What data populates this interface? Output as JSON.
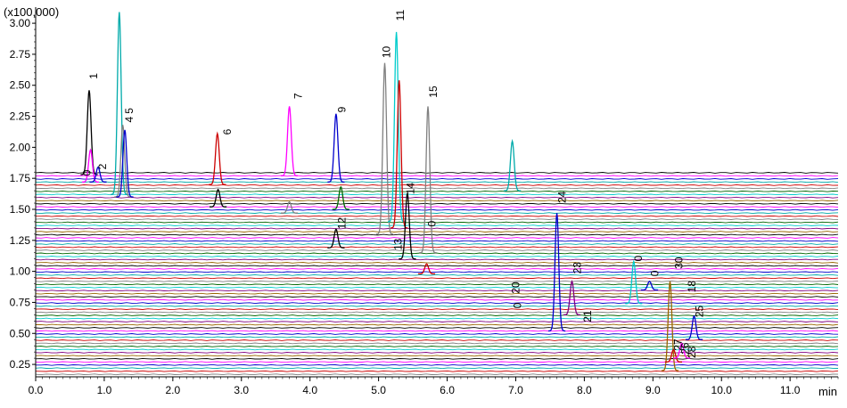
{
  "chart_data": {
    "type": "line",
    "title": "",
    "y_multiplier_label": "(x100,000)",
    "xlabel": "min",
    "ylabel": "",
    "xlim": [
      0.0,
      11.7
    ],
    "ylim": [
      0.15,
      3.13
    ],
    "x_ticks": [
      "0.0",
      "1.0",
      "2.0",
      "3.0",
      "4.0",
      "5.0",
      "6.0",
      "7.0",
      "8.0",
      "9.0",
      "10.0",
      "11.0"
    ],
    "x_tick_values": [
      0,
      1,
      2,
      3,
      4,
      5,
      6,
      7,
      8,
      9,
      10,
      11
    ],
    "y_ticks": [
      "0.25",
      "0.50",
      "0.75",
      "1.00",
      "1.25",
      "1.50",
      "1.75",
      "2.00",
      "2.25",
      "2.50",
      "2.75",
      "3.00"
    ],
    "y_tick_values": [
      0.25,
      0.5,
      0.75,
      1.0,
      1.25,
      1.5,
      1.75,
      2.0,
      2.25,
      2.5,
      2.75,
      3.0
    ],
    "palette": [
      "#000000",
      "#ff00ff",
      "#0000cc",
      "#00aaaa",
      "#cc0000",
      "#808080",
      "#006600",
      "#00cccc",
      "#800080",
      "#996600"
    ],
    "baselines": [
      1.795,
      1.77,
      1.745,
      1.72,
      1.695,
      1.67,
      1.645,
      1.62,
      1.595,
      1.57,
      1.545,
      1.52,
      1.495,
      1.47,
      1.445,
      1.42,
      1.395,
      1.37,
      1.345,
      1.32,
      1.295,
      1.27,
      1.245,
      1.22,
      1.195,
      1.17,
      1.145,
      1.12,
      1.095,
      1.07,
      1.045,
      1.02,
      0.995,
      0.97,
      0.945,
      0.92,
      0.895,
      0.87,
      0.845,
      0.82,
      0.795,
      0.77,
      0.745,
      0.72,
      0.695,
      0.67,
      0.645,
      0.62,
      0.595,
      0.57,
      0.545,
      0.52,
      0.495,
      0.47,
      0.445,
      0.42,
      0.395,
      0.37,
      0.345,
      0.32,
      0.295,
      0.27,
      0.245,
      0.22,
      0.195,
      0.17
    ],
    "peaks": [
      {
        "x": 0.78,
        "apex": 2.46,
        "base": 1.78,
        "color": "#000000"
      },
      {
        "x": 0.8,
        "apex": 1.98,
        "base": 1.72,
        "color": "#ff00ff"
      },
      {
        "x": 0.91,
        "apex": 1.84,
        "base": 1.72,
        "color": "#0000cc"
      },
      {
        "x": 1.22,
        "apex": 3.09,
        "base": 1.62,
        "color": "#00aaaa"
      },
      {
        "x": 1.27,
        "apex": 2.18,
        "base": 1.6,
        "color": "#808080"
      },
      {
        "x": 1.3,
        "apex": 2.14,
        "base": 1.6,
        "color": "#0000cc"
      },
      {
        "x": 2.65,
        "apex": 2.11,
        "base": 1.7,
        "color": "#cc0000"
      },
      {
        "x": 2.66,
        "apex": 1.66,
        "base": 1.52,
        "color": "#000000"
      },
      {
        "x": 3.7,
        "apex": 2.33,
        "base": 1.77,
        "color": "#ff00ff"
      },
      {
        "x": 3.7,
        "apex": 1.56,
        "base": 1.47,
        "color": "#808080"
      },
      {
        "x": 4.38,
        "apex": 2.27,
        "base": 1.72,
        "color": "#0000cc"
      },
      {
        "x": 4.38,
        "apex": 1.34,
        "base": 1.19,
        "color": "#000000"
      },
      {
        "x": 4.45,
        "apex": 1.68,
        "base": 1.5,
        "color": "#006600"
      },
      {
        "x": 5.09,
        "apex": 2.68,
        "base": 1.3,
        "color": "#808080"
      },
      {
        "x": 5.26,
        "apex": 2.93,
        "base": 1.4,
        "color": "#00cccc"
      },
      {
        "x": 5.3,
        "apex": 2.54,
        "base": 1.35,
        "color": "#cc0000"
      },
      {
        "x": 5.42,
        "apex": 1.63,
        "base": 1.1,
        "color": "#000000"
      },
      {
        "x": 5.72,
        "apex": 2.33,
        "base": 1.15,
        "color": "#808080"
      },
      {
        "x": 5.7,
        "apex": 1.06,
        "base": 0.98,
        "color": "#cc0000"
      },
      {
        "x": 6.95,
        "apex": 2.05,
        "base": 1.65,
        "color": "#00aaaa"
      },
      {
        "x": 7.6,
        "apex": 1.47,
        "base": 0.52,
        "color": "#0000cc"
      },
      {
        "x": 7.82,
        "apex": 0.92,
        "base": 0.65,
        "color": "#800080"
      },
      {
        "x": 8.72,
        "apex": 1.08,
        "base": 0.74,
        "color": "#00cccc"
      },
      {
        "x": 8.95,
        "apex": 0.92,
        "base": 0.85,
        "color": "#0000cc"
      },
      {
        "x": 9.25,
        "apex": 0.92,
        "base": 0.2,
        "color": "#996600"
      },
      {
        "x": 9.3,
        "apex": 0.37,
        "base": 0.27,
        "color": "#cc0000"
      },
      {
        "x": 9.42,
        "apex": 0.42,
        "base": 0.3,
        "color": "#ff00ff"
      },
      {
        "x": 9.6,
        "apex": 0.64,
        "base": 0.45,
        "color": "#0000cc"
      }
    ],
    "annotations": [
      {
        "label": "1",
        "x": 0.9,
        "y": 2.55
      },
      {
        "label": "2",
        "x": 1.03,
        "y": 1.82
      },
      {
        "label": "0",
        "x": 0.8,
        "y": 1.77
      },
      {
        "label": "4",
        "x": 1.42,
        "y": 2.2
      },
      {
        "label": "5",
        "x": 1.42,
        "y": 2.27
      },
      {
        "label": "6",
        "x": 2.85,
        "y": 2.1
      },
      {
        "label": "7",
        "x": 3.88,
        "y": 2.39
      },
      {
        "label": "9",
        "x": 4.52,
        "y": 2.28
      },
      {
        "label": "12",
        "x": 4.52,
        "y": 1.34
      },
      {
        "label": "10",
        "x": 5.17,
        "y": 2.72
      },
      {
        "label": "11",
        "x": 5.37,
        "y": 3.02
      },
      {
        "label": "13",
        "x": 5.34,
        "y": 1.17
      },
      {
        "label": "14",
        "x": 5.52,
        "y": 1.62
      },
      {
        "label": "15",
        "x": 5.85,
        "y": 2.4
      },
      {
        "label": "0",
        "x": 5.83,
        "y": 1.36
      },
      {
        "label": "20",
        "x": 7.05,
        "y": 0.82
      },
      {
        "label": "0",
        "x": 7.08,
        "y": 0.7
      },
      {
        "label": "24",
        "x": 7.73,
        "y": 1.55
      },
      {
        "label": "23",
        "x": 7.95,
        "y": 0.98
      },
      {
        "label": "21",
        "x": 8.1,
        "y": 0.59
      },
      {
        "label": "0",
        "x": 8.84,
        "y": 1.08
      },
      {
        "label": "0",
        "x": 9.08,
        "y": 0.96
      },
      {
        "label": "30",
        "x": 9.43,
        "y": 1.02
      },
      {
        "label": "18",
        "x": 9.62,
        "y": 0.83
      },
      {
        "label": "25",
        "x": 9.73,
        "y": 0.63
      },
      {
        "label": "27",
        "x": 9.42,
        "y": 0.36
      },
      {
        "label": "26",
        "x": 9.52,
        "y": 0.33
      },
      {
        "label": "28",
        "x": 9.62,
        "y": 0.3
      }
    ],
    "grid": false,
    "legend": "none"
  }
}
